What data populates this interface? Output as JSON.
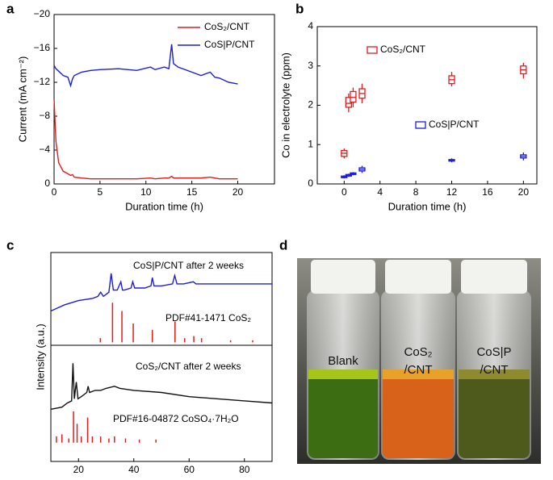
{
  "chart_data": [
    {
      "type": "line",
      "panel_label": "a",
      "xlabel": "Duration time (h)",
      "ylabel": "Current (mA cm⁻²)",
      "xlim": [
        0,
        24
      ],
      "ylim": [
        0,
        -20
      ],
      "xticks": [
        0,
        5,
        10,
        15,
        20
      ],
      "yticks": [
        0,
        {
          "value": -4,
          "label": "−4"
        },
        {
          "value": -8,
          "label": "−8"
        },
        {
          "value": -12,
          "label": "−12"
        },
        {
          "value": -16,
          "label": "−16"
        },
        {
          "value": -20,
          "label": "−20"
        }
      ],
      "legend": "upper right",
      "x": [
        0,
        0.2,
        0.5,
        1,
        1.5,
        1.8,
        2,
        2.2,
        3,
        4,
        5,
        7,
        9,
        10.5,
        11,
        12,
        12.5,
        12.8,
        13,
        13.5,
        15,
        16,
        17,
        17.5,
        18,
        19,
        20
      ],
      "series": [
        {
          "name": "CoS₂/CNT",
          "color": "#e8191b",
          "values": [
            -10,
            -5,
            -2.5,
            -1.5,
            -1.2,
            -1,
            -1.1,
            -0.8,
            -0.7,
            -0.6,
            -0.6,
            -0.6,
            -0.6,
            -0.7,
            -0.6,
            -0.7,
            -0.7,
            -0.9,
            -0.7,
            -0.7,
            -0.7,
            -0.7,
            -0.8,
            -0.7,
            -0.6,
            -0.6,
            -0.6
          ]
        },
        {
          "name": "CoS|P/CNT",
          "color": "#1c1ce0",
          "values": [
            -14,
            -13.6,
            -13.3,
            -12.8,
            -12.6,
            -11.6,
            -12.4,
            -12.8,
            -13.2,
            -13.4,
            -13.5,
            -13.6,
            -13.4,
            -13.8,
            -13.5,
            -13.8,
            -13.6,
            -16.5,
            -14.2,
            -13.8,
            -13.2,
            -12.8,
            -13.2,
            -12.6,
            -12.5,
            -12,
            -11.8
          ]
        }
      ]
    },
    {
      "type": "box",
      "panel_label": "b",
      "xlabel": "Duration time (h)",
      "ylabel": "Co in electrolyte (ppm)",
      "xlim": [
        -3,
        21.5
      ],
      "ylim": [
        0,
        4
      ],
      "xticks": [
        0,
        4,
        8,
        12,
        16,
        20
      ],
      "yticks": [
        0,
        1,
        2,
        3,
        4
      ],
      "series": [
        {
          "name": "CoS₂/CNT",
          "color": "#e8191b",
          "x": [
            0,
            0.5,
            1,
            2,
            12,
            20
          ],
          "median": [
            0.78,
            2.05,
            2.2,
            2.3,
            2.65,
            2.9
          ],
          "q1": [
            0.7,
            1.95,
            2.08,
            2.18,
            2.55,
            2.8
          ],
          "q3": [
            0.85,
            2.2,
            2.35,
            2.42,
            2.75,
            3.0
          ],
          "min": [
            0.65,
            1.82,
            1.95,
            2.05,
            2.48,
            2.68
          ],
          "max": [
            0.9,
            2.3,
            2.45,
            2.55,
            2.85,
            3.08
          ]
        },
        {
          "name": "CoS|P/CNT",
          "color": "#1c1ce0",
          "x": [
            0,
            0.5,
            1,
            2,
            12,
            20
          ],
          "median": [
            0.18,
            0.22,
            0.26,
            0.37,
            0.6,
            0.7
          ],
          "q1": [
            0.16,
            0.2,
            0.24,
            0.33,
            0.58,
            0.66
          ],
          "q3": [
            0.2,
            0.24,
            0.28,
            0.41,
            0.62,
            0.74
          ],
          "min": [
            0.14,
            0.18,
            0.22,
            0.28,
            0.55,
            0.6
          ],
          "max": [
            0.22,
            0.26,
            0.3,
            0.46,
            0.65,
            0.8
          ]
        }
      ]
    },
    {
      "type": "line",
      "panel_label": "c",
      "xlabel": "2θ (degree)",
      "ylabel": "Intensity (a.u.)",
      "xlim": [
        10,
        90
      ],
      "ylim": [
        0,
        100
      ],
      "xticks": [
        20,
        40,
        60,
        80
      ],
      "annotations": [
        "CoS|P/CNT after 2 weeks",
        "PDF#41-1471  CoS₂",
        "CoS₂/CNT after 2 weeks",
        "PDF#16-04872  CoSO₄·7H₂O"
      ],
      "series": [
        {
          "style": "line",
          "color": "#1c1ce0",
          "x": [
            10,
            15,
            20,
            25,
            27,
            28,
            29,
            31,
            31.8,
            32.6,
            34,
            35.3,
            35.9,
            36.6,
            39,
            39.6,
            40.3,
            44,
            46.2,
            46.7,
            47.3,
            50,
            54,
            54.8,
            55.6,
            58,
            61.5,
            62.5,
            64,
            70,
            80,
            90
          ],
          "values": [
            72,
            75,
            77,
            78,
            79,
            81,
            79,
            81,
            90,
            82,
            82,
            86,
            82,
            82,
            83,
            86,
            83,
            83,
            84,
            88,
            84,
            84,
            85,
            89,
            85,
            85,
            86,
            85,
            85,
            85,
            85,
            85
          ]
        },
        {
          "style": "stick",
          "color": "#e8191b",
          "baseline": 57,
          "x": [
            27.9,
            32.3,
            35.7,
            39.8,
            46.7,
            54.9,
            58.4,
            61.7,
            64.5,
            75,
            83
          ],
          "values": [
            59,
            76,
            72,
            66,
            63,
            67,
            59,
            60,
            59,
            58,
            58
          ]
        },
        {
          "style": "line",
          "color": "#111111",
          "x": [
            10,
            14,
            16,
            17.5,
            18,
            18.5,
            19.2,
            19.8,
            21,
            23,
            23.5,
            24,
            26,
            28,
            30,
            33,
            35,
            40,
            50,
            60,
            70,
            80,
            90
          ],
          "values": [
            25,
            26,
            28,
            29,
            47,
            30,
            38,
            30,
            31,
            33,
            36,
            33,
            34,
            34,
            35,
            36,
            35,
            34,
            33,
            31,
            30,
            29,
            28
          ]
        },
        {
          "style": "stick",
          "color": "#e8191b",
          "baseline": 9,
          "x": [
            12,
            14,
            16.5,
            18.2,
            19.5,
            21,
            23.3,
            25,
            28,
            31,
            33,
            37,
            42,
            48
          ],
          "values": [
            12,
            13,
            11,
            24,
            18,
            12,
            21,
            12,
            12,
            11,
            12,
            11,
            10.5,
            10.5
          ]
        }
      ]
    }
  ],
  "photo": {
    "panel_label": "d",
    "labels": [
      [
        "Blank"
      ],
      [
        "CoS₂",
        "/CNT"
      ],
      [
        "CoS|P",
        "/CNT"
      ]
    ]
  }
}
